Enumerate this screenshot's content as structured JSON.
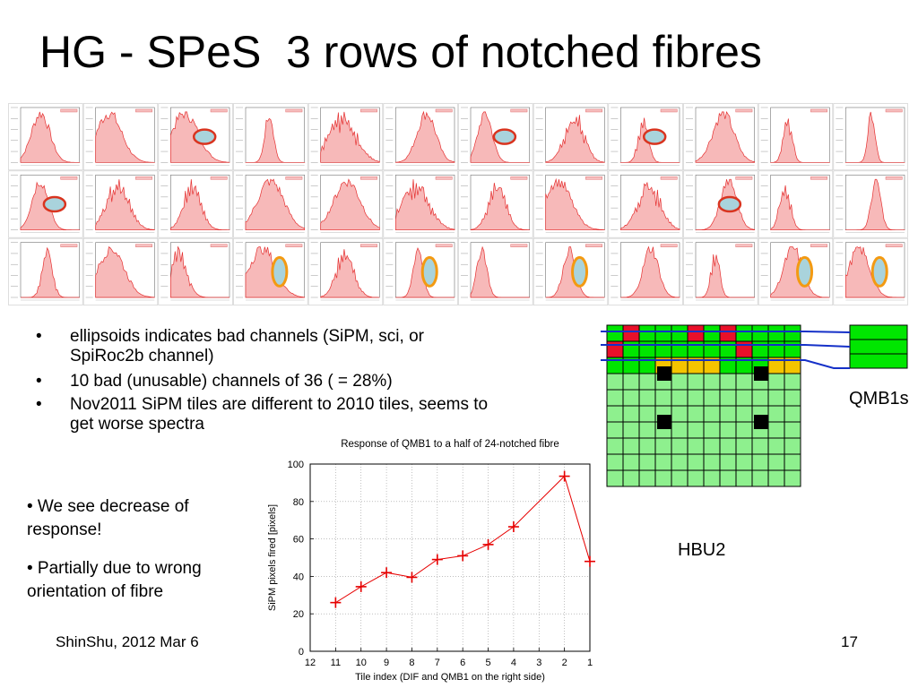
{
  "slide": {
    "title": "HG - SPeS  3 rows of notched fibres",
    "bullets": [
      "ellipsoids indicates bad channels (SiPM, sci, or SpiRoc2b channel)",
      "10 bad (unusable) channels of 36   ( = 28%)",
      "Nov2011 SiPM tiles are different to 2010 tiles, seems to get worse spectra"
    ],
    "bullet_marker": "•",
    "notes": [
      "• We see decrease of response!",
      "• Partially due to wrong orientation of fibre"
    ],
    "footer_left": "ShinShu, 2012  Mar 6",
    "page_number": "17",
    "hbu_label": "HBU2",
    "qmb_label": "QMB1s"
  },
  "histogram_grid": {
    "rows": 3,
    "cols": 12,
    "bad_round": [
      [
        0,
        2
      ],
      [
        0,
        6
      ],
      [
        0,
        8
      ],
      [
        1,
        0
      ],
      [
        1,
        9
      ]
    ],
    "bad_upright": [
      [
        2,
        3
      ],
      [
        2,
        5
      ],
      [
        2,
        7
      ],
      [
        2,
        10
      ],
      [
        2,
        11
      ]
    ],
    "fill_color": "#f7b9b9",
    "line_color": "#e53030",
    "ellipse_fill": "#a9d3dc",
    "ellipse_edge_round": "#d9341f",
    "ellipse_edge_upright": "#f39a12"
  },
  "hbu_diagram": {
    "rows": 10,
    "cols": 12,
    "red_cells": [
      [
        0,
        1
      ],
      [
        0,
        5
      ],
      [
        0,
        7
      ],
      [
        1,
        0
      ],
      [
        1,
        8
      ]
    ],
    "yellow_cells": [
      [
        2,
        3
      ],
      [
        2,
        4
      ],
      [
        2,
        5
      ],
      [
        2,
        6
      ],
      [
        2,
        10
      ],
      [
        2,
        11
      ]
    ],
    "black_squares": [
      [
        3,
        3
      ],
      [
        3,
        9
      ],
      [
        6,
        3
      ],
      [
        6,
        9
      ]
    ],
    "green_bright": "#00e600",
    "green_light": "#8ef08e",
    "red": "#e8102a",
    "yellow": "#f5c400",
    "line": "#1530c8"
  },
  "chart_data": {
    "type": "line",
    "title": "Response of QMB1 to a half of 24-notched fibre",
    "xlabel": "Tile index (DIF and QMB1 on the right side)",
    "ylabel": "SiPM pixels fired [pixels]",
    "x_ticks": [
      12,
      11,
      10,
      9,
      8,
      7,
      6,
      5,
      4,
      3,
      2,
      1
    ],
    "y_ticks": [
      0,
      20,
      40,
      60,
      80,
      100
    ],
    "xlim": [
      12,
      1
    ],
    "ylim": [
      0,
      100
    ],
    "x": [
      11,
      10,
      9,
      8,
      7,
      6,
      5,
      4,
      2,
      1
    ],
    "y": [
      26,
      34.5,
      42,
      39.5,
      49,
      51,
      57,
      66.5,
      93.5,
      48
    ],
    "color": "#e60000",
    "grid": true
  }
}
